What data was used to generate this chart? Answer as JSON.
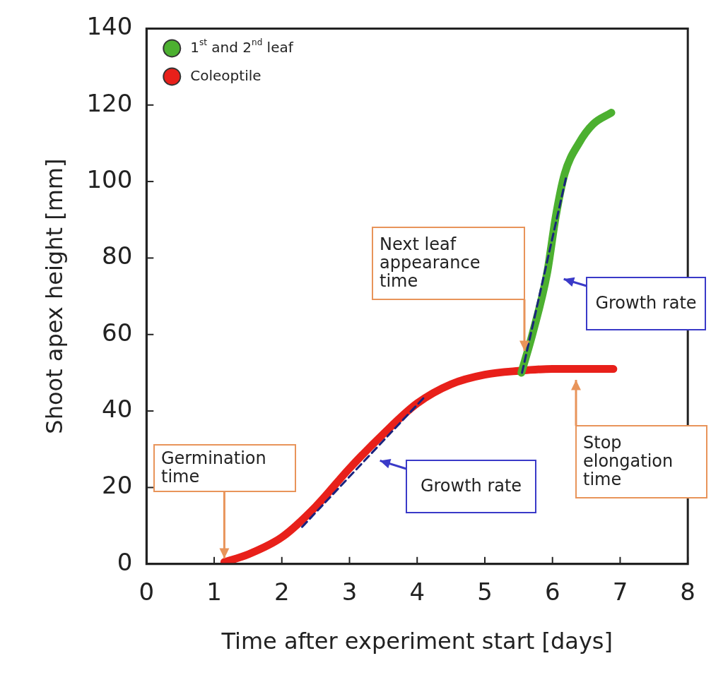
{
  "chart_data": {
    "type": "line",
    "xlabel": "Time after experiment start [days]",
    "ylabel": "Shoot apex height [mm]",
    "xlim": [
      0,
      8
    ],
    "xticks": [
      0,
      1,
      2,
      3,
      4,
      5,
      6,
      7,
      8
    ],
    "ylim": [
      0,
      140
    ],
    "yticks": [
      0,
      20,
      40,
      60,
      80,
      100,
      120,
      140
    ],
    "legend": "top left",
    "series": [
      {
        "name": "1$^{st}$ and 2$^{nd}$ leaf",
        "color": "#4cb030",
        "x": [
          5.54,
          5.71,
          5.92,
          6.05,
          6.18,
          6.39,
          6.6,
          6.87
        ],
        "values": [
          50,
          60.5,
          76,
          91,
          102,
          110,
          115,
          118
        ]
      },
      {
        "name": "Coleoptile",
        "color": "#e8201a",
        "x": [
          1.15,
          1.5,
          2.0,
          2.5,
          3.0,
          3.5,
          4.0,
          4.5,
          5.0,
          5.5,
          6.0,
          6.9
        ],
        "values": [
          0.5,
          2.5,
          7,
          15,
          25,
          34,
          42,
          47,
          49.5,
          50.5,
          51,
          51
        ]
      },
      {
        "color": "#1a237e",
        "line_style": "dashed",
        "x": [
          2.3,
          4.1
        ],
        "values": [
          9.7,
          43.5
        ]
      },
      {
        "color": "#1a237e",
        "line_style": "dashed",
        "x": [
          5.55,
          6.2
        ],
        "values": [
          50,
          101
        ]
      }
    ],
    "annotations": [
      {
        "text": "Germination time",
        "x": 1.15,
        "y": 0
      },
      "Next leaf appearance time",
      "Growth rate",
      "Growth rate",
      "Stop elongation time"
    ]
  }
}
